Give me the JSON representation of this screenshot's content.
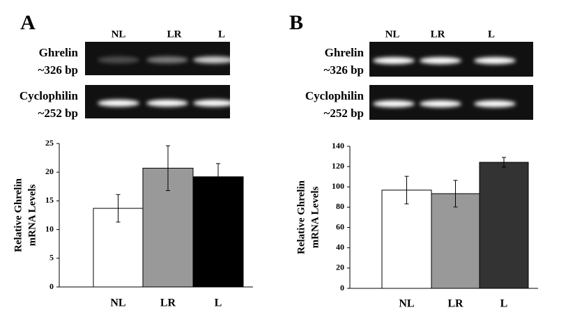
{
  "chart_data": [
    {
      "type": "bar",
      "panel": "A",
      "ylabel": [
        "Relative Ghrelin",
        "mRNA Levels"
      ],
      "categories": [
        "NL",
        "LR",
        "L"
      ],
      "values": [
        13.7,
        20.7,
        19.2
      ],
      "errors": [
        2.4,
        3.9,
        2.3
      ],
      "colors": [
        "#ffffff",
        "#999999",
        "#000000"
      ],
      "ylim": [
        0,
        25
      ],
      "yticks": [
        0,
        5,
        10,
        15,
        20,
        25
      ]
    },
    {
      "type": "bar",
      "panel": "B",
      "ylabel": [
        "Relative Ghrelin",
        "mRNA Levels"
      ],
      "categories": [
        "NL",
        "LR",
        "L"
      ],
      "values": [
        96.8,
        93.3,
        124.2
      ],
      "errors": [
        13.6,
        13.1,
        4.8
      ],
      "colors": [
        "#ffffff",
        "#999999",
        "#333333"
      ],
      "ylim": [
        0,
        140
      ],
      "yticks": [
        0,
        20,
        40,
        60,
        80,
        100,
        120,
        140
      ]
    }
  ],
  "gels": [
    {
      "lanes": [
        "NL",
        "LR",
        "L"
      ],
      "bands": [
        {
          "label": "Ghrelin",
          "size": "~326 bp"
        },
        {
          "label": "Cyclophilin",
          "size": "~252 bp"
        }
      ]
    },
    {
      "lanes": [
        "NL",
        "LR",
        "L"
      ],
      "bands": [
        {
          "label": "Ghrelin",
          "size": "~326 bp"
        },
        {
          "label": "Cyclophilin",
          "size": "~252 bp"
        }
      ]
    }
  ]
}
